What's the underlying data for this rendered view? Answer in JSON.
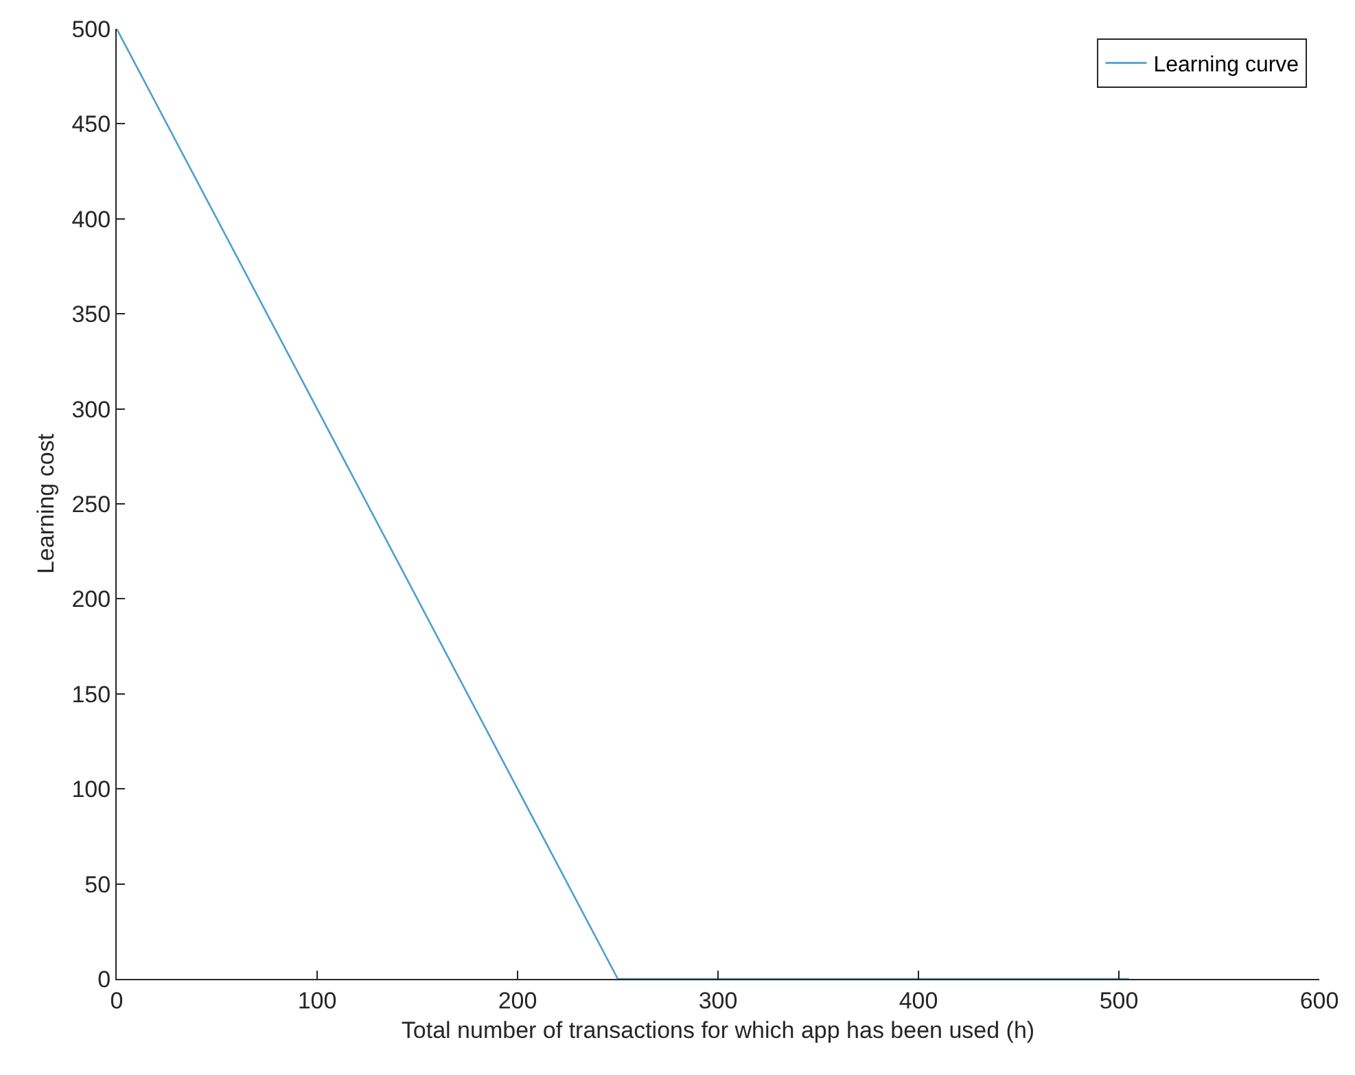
{
  "chart_data": {
    "type": "line",
    "xlabel": "Total number of transactions for which app has been used (h)",
    "ylabel": "Learning cost",
    "x": [
      0,
      250,
      505
    ],
    "series": [
      {
        "name": "Learning curve",
        "color": "#4d9fcf",
        "values": [
          500,
          0,
          0
        ]
      }
    ],
    "xlim": [
      0,
      600
    ],
    "xticks": [
      0,
      100,
      200,
      300,
      400,
      500,
      600
    ],
    "ylim": [
      0,
      500
    ],
    "yticks": [
      0,
      50,
      100,
      150,
      200,
      250,
      300,
      350,
      400,
      450,
      500
    ],
    "grid": false,
    "legend": "top right",
    "marker": "none",
    "line_style": "solid"
  }
}
